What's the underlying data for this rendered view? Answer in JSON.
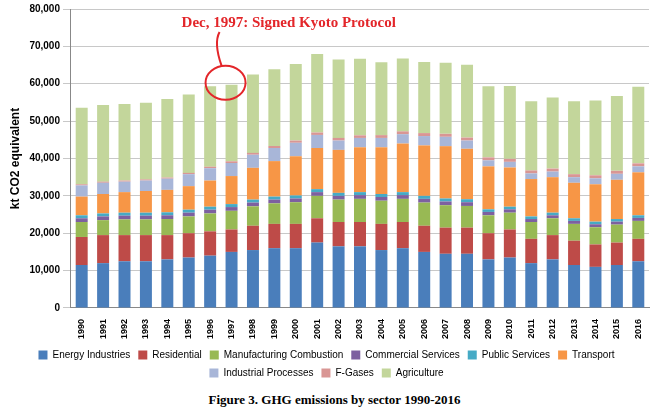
{
  "chart_data": {
    "type": "bar",
    "title": "Figure 3. GHG emissions by sector 1990-2016",
    "y_label": "kt CO2 equivalent",
    "annotations": [
      {
        "text": "Dec, 1997: Signed Kyoto Protocol",
        "x": "1997"
      }
    ],
    "categories": [
      "1990",
      "1991",
      "1992",
      "1993",
      "1994",
      "1995",
      "1996",
      "1997",
      "1998",
      "1999",
      "2000",
      "2001",
      "2002",
      "2003",
      "2004",
      "2005",
      "2006",
      "2007",
      "2008",
      "2009",
      "2010",
      "2011",
      "2012",
      "2013",
      "2014",
      "2015",
      "2016"
    ],
    "stacked": true,
    "grid": true,
    "legend": "bottom",
    "ylim": [
      0,
      80000
    ],
    "yticks": [
      0,
      {
        "value": 10000,
        "label": "10,000"
      },
      {
        "value": 20000,
        "label": "20,000"
      },
      {
        "value": 30000,
        "label": "30,000"
      },
      {
        "value": 40000,
        "label": "40,000"
      },
      {
        "value": 50000,
        "label": "50,000"
      },
      {
        "value": 60000,
        "label": "60,000"
      },
      {
        "value": 70000,
        "label": "70,000"
      },
      {
        "value": 80000,
        "label": "80,000"
      }
    ],
    "series": [
      {
        "name": "Energy Industries",
        "color": "#4a7ebb",
        "values": [
          11500,
          12000,
          12500,
          12500,
          13000,
          13500,
          14000,
          15000,
          15500,
          16000,
          16000,
          17500,
          16500,
          16500,
          15500,
          16000,
          15000,
          14500,
          14500,
          13000,
          13500,
          12000,
          13000,
          11500,
          11000,
          11500,
          12500
        ]
      },
      {
        "name": "Residential",
        "color": "#be4b48",
        "values": [
          7500,
          7500,
          7000,
          7000,
          6500,
          6500,
          6500,
          6000,
          6500,
          6500,
          6500,
          6500,
          6500,
          6500,
          7000,
          7000,
          7000,
          7000,
          7000,
          7000,
          7500,
          6500,
          6500,
          6500,
          6000,
          6000,
          6000
        ]
      },
      {
        "name": "Manufacturing Combustion",
        "color": "#98b954",
        "values": [
          4000,
          4000,
          4200,
          4200,
          4300,
          4500,
          4800,
          5000,
          5200,
          5500,
          5800,
          6000,
          6000,
          6200,
          6200,
          6200,
          6200,
          6000,
          5800,
          4800,
          4500,
          4500,
          4500,
          4500,
          4600,
          4800,
          4800
        ]
      },
      {
        "name": "Commercial Services",
        "color": "#7d60a0",
        "values": [
          1000,
          1000,
          1000,
          1000,
          1000,
          1000,
          1000,
          1000,
          1000,
          1000,
          1000,
          1000,
          1000,
          1000,
          1000,
          1000,
          1000,
          1000,
          1000,
          900,
          900,
          800,
          800,
          800,
          800,
          800,
          800
        ]
      },
      {
        "name": "Public Services",
        "color": "#46aac5",
        "values": [
          800,
          800,
          800,
          800,
          800,
          800,
          800,
          800,
          800,
          800,
          800,
          800,
          800,
          800,
          800,
          800,
          800,
          800,
          800,
          700,
          700,
          700,
          700,
          700,
          700,
          700,
          700
        ]
      },
      {
        "name": "Transport",
        "color": "#f79646",
        "values": [
          5000,
          5200,
          5500,
          5800,
          6000,
          6300,
          7000,
          7500,
          8500,
          9500,
          10500,
          11000,
          11500,
          12000,
          12500,
          13000,
          13500,
          14000,
          13500,
          11500,
          10500,
          10000,
          9500,
          9500,
          10000,
          10500,
          11500
        ]
      },
      {
        "name": "Industrial Processes",
        "color": "#a8b6d8",
        "values": [
          3000,
          3000,
          2800,
          2800,
          3000,
          3200,
          3300,
          3500,
          3500,
          3500,
          3600,
          3500,
          2500,
          2500,
          2500,
          2500,
          2500,
          2500,
          2200,
          1600,
          1500,
          1500,
          1500,
          1500,
          1600,
          1600,
          1600
        ]
      },
      {
        "name": "F-Gases",
        "color": "#d99694",
        "values": [
          300,
          300,
          300,
          300,
          300,
          350,
          400,
          450,
          500,
          550,
          600,
          650,
          700,
          700,
          750,
          750,
          800,
          800,
          800,
          800,
          800,
          800,
          800,
          800,
          800,
          800,
          800
        ]
      },
      {
        "name": "Agriculture",
        "color": "#c3d69b",
        "values": [
          20500,
          20500,
          20500,
          20500,
          21000,
          21000,
          21500,
          20500,
          21000,
          20500,
          20500,
          21000,
          21000,
          20500,
          19500,
          19500,
          19000,
          19000,
          19500,
          19000,
          19500,
          18500,
          19000,
          19500,
          20000,
          20000,
          20500
        ]
      }
    ]
  }
}
